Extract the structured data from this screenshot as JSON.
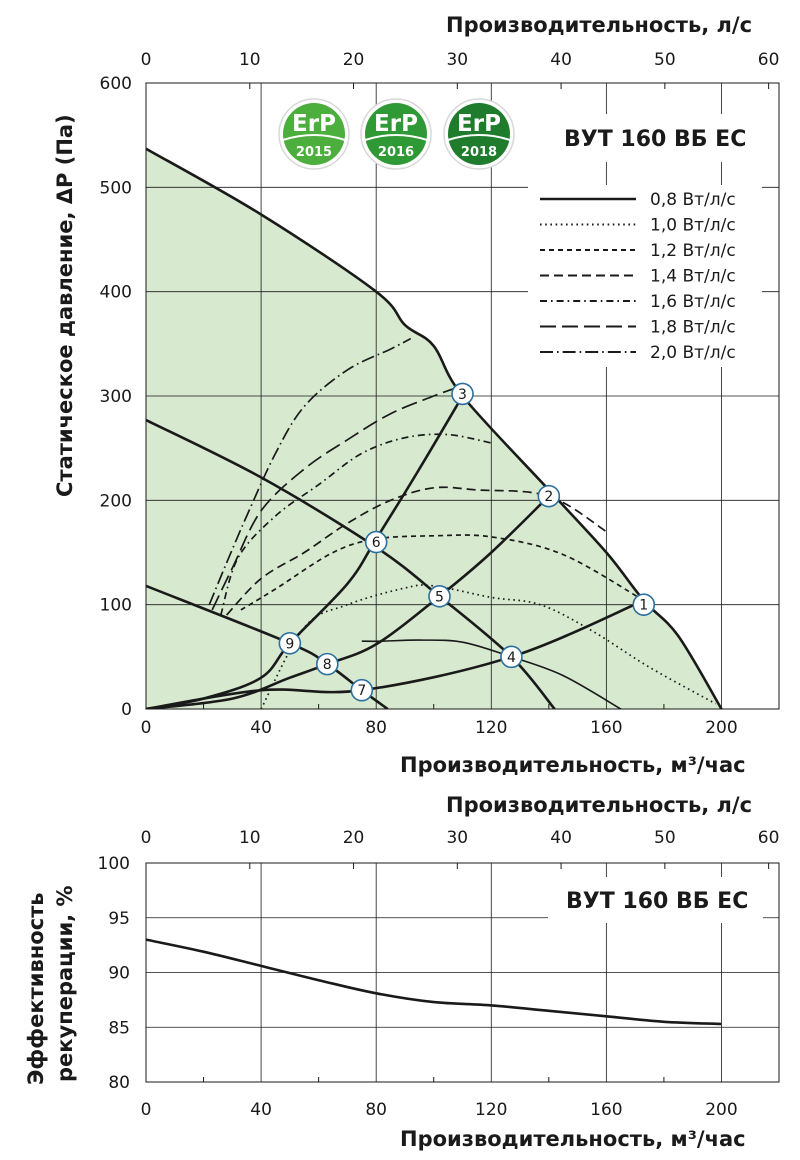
{
  "colors": {
    "area_fill": "#d7e9cf",
    "curve": "#1a1a1a",
    "marker_fill": "#ffffff",
    "marker_stroke": "#2d6f9f",
    "grid": "#1a1a1a",
    "badge_2015": "#4cae3c",
    "badge_2016": "#2f9a35",
    "badge_2018": "#1f7c2c"
  },
  "chart_data": [
    {
      "type": "line",
      "model_label": "ВУТ 160 ВБ ЕС",
      "xlabel": "Производительность, м³/час",
      "x2label": "Производительность, л/с",
      "ylabel": "Статическое давление, ΔP (Па)",
      "xlim": [
        0,
        220
      ],
      "x_ticks": [
        "0",
        "40",
        "80",
        "120",
        "160",
        "200"
      ],
      "x2lim": [
        0,
        61
      ],
      "x2_ticks": [
        "0",
        "10",
        "20",
        "30",
        "40",
        "50",
        "60"
      ],
      "ylim": [
        0,
        600
      ],
      "y_ticks": [
        "0",
        "100",
        "200",
        "300",
        "400",
        "500",
        "600"
      ],
      "grid": true,
      "badges": [
        {
          "top": "ErP",
          "year": "2015"
        },
        {
          "top": "ErP",
          "year": "2016"
        },
        {
          "top": "ErP",
          "year": "2018"
        }
      ],
      "legend": [
        {
          "label": "0,8 Вт/л/с",
          "dash": "solid"
        },
        {
          "label": "1,0 Вт/л/с",
          "dash": "dotted"
        },
        {
          "label": "1,2 Вт/л/с",
          "dash": "short"
        },
        {
          "label": "1,4 Вт/л/с",
          "dash": "medium"
        },
        {
          "label": "1,6 Вт/л/с",
          "dash": "dash-dot-short"
        },
        {
          "label": "1,8 Вт/л/с",
          "dash": "long"
        },
        {
          "label": "2,0 Вт/л/с",
          "dash": "dash-dot-long"
        }
      ],
      "legend_position": "top-right",
      "max_curve": [
        [
          0,
          537
        ],
        [
          40,
          474
        ],
        [
          80,
          400
        ],
        [
          90,
          368
        ],
        [
          100,
          348
        ],
        [
          110,
          300
        ],
        [
          140,
          210
        ],
        [
          160,
          150
        ],
        [
          173,
          104
        ],
        [
          185,
          70
        ],
        [
          200,
          0
        ]
      ],
      "fan_curves": [
        {
          "points": [
            [
              0,
              277
            ],
            [
              40,
              222
            ],
            [
              80,
              155
            ],
            [
              102,
              108
            ],
            [
              127,
              50
            ],
            [
              142,
              0
            ]
          ]
        },
        {
          "points": [
            [
              0,
              118
            ],
            [
              50,
              63
            ],
            [
              63,
              43
            ],
            [
              75,
              18
            ],
            [
              84,
              0
            ]
          ]
        }
      ],
      "system_curves": [
        {
          "points": [
            [
              0,
              0
            ],
            [
              40,
              18
            ],
            [
              75,
              18
            ],
            [
              127,
              50
            ],
            [
              173,
              104
            ]
          ]
        },
        {
          "points": [
            [
              0,
              0
            ],
            [
              30,
              10
            ],
            [
              50,
              30
            ],
            [
              63,
              43
            ],
            [
              80,
              62
            ],
            [
              102,
              108
            ],
            [
              120,
              150
            ],
            [
              140,
              204
            ]
          ]
        },
        {
          "points": [
            [
              0,
              0
            ],
            [
              20,
              10
            ],
            [
              40,
              30
            ],
            [
              50,
              63
            ],
            [
              70,
              120
            ],
            [
              80,
              163
            ],
            [
              95,
              230
            ],
            [
              110,
              300
            ]
          ]
        },
        {
          "points": [
            [
              75,
              65
            ],
            [
              82,
              65
            ],
            [
              95,
              66
            ],
            [
              110,
              64
            ],
            [
              127,
              50
            ],
            [
              145,
              32
            ],
            [
              165,
              0
            ]
          ]
        }
      ],
      "power_curves": [
        {
          "dash": "dotted",
          "points": [
            [
              40,
              0
            ],
            [
              55,
              78
            ],
            [
              70,
              100
            ],
            [
              90,
              116
            ],
            [
              100,
              118
            ],
            [
              120,
              107
            ],
            [
              137,
              100
            ],
            [
              155,
              75
            ],
            [
              175,
              40
            ],
            [
              198,
              5
            ]
          ]
        },
        {
          "dash": "short",
          "points": [
            [
              33,
              95
            ],
            [
              45,
              115
            ],
            [
              65,
              150
            ],
            [
              80,
              163
            ],
            [
              100,
              166
            ],
            [
              120,
              165
            ],
            [
              145,
              148
            ],
            [
              173,
              104
            ]
          ]
        },
        {
          "dash": "medium",
          "points": [
            [
              28,
              90
            ],
            [
              40,
              125
            ],
            [
              55,
              150
            ],
            [
              70,
              178
            ],
            [
              85,
              200
            ],
            [
              100,
              212
            ],
            [
              115,
              210
            ],
            [
              140,
              204
            ],
            [
              160,
              170
            ]
          ]
        },
        {
          "dash": "dash-dot-short",
          "points": [
            [
              26,
              90
            ],
            [
              32,
              145
            ],
            [
              45,
              185
            ],
            [
              60,
              215
            ],
            [
              75,
              245
            ],
            [
              90,
              260
            ],
            [
              105,
              263
            ],
            [
              120,
              255
            ]
          ]
        },
        {
          "dash": "long",
          "points": [
            [
              23,
              95
            ],
            [
              30,
              135
            ],
            [
              40,
              190
            ],
            [
              55,
              230
            ],
            [
              70,
              258
            ],
            [
              85,
              283
            ],
            [
              100,
              300
            ],
            [
              110,
              310
            ]
          ]
        },
        {
          "dash": "dash-dot-long",
          "points": [
            [
              22,
              100
            ],
            [
              28,
              140
            ],
            [
              35,
              185
            ],
            [
              45,
              245
            ],
            [
              55,
              290
            ],
            [
              70,
              325
            ],
            [
              85,
              345
            ],
            [
              92,
              355
            ]
          ]
        }
      ],
      "markers": [
        {
          "label": "1",
          "x": 173,
          "y": 100
        },
        {
          "label": "2",
          "x": 140,
          "y": 204
        },
        {
          "label": "3",
          "x": 110,
          "y": 302
        },
        {
          "label": "4",
          "x": 127,
          "y": 50
        },
        {
          "label": "5",
          "x": 102,
          "y": 108
        },
        {
          "label": "6",
          "x": 80,
          "y": 160
        },
        {
          "label": "7",
          "x": 75,
          "y": 18
        },
        {
          "label": "8",
          "x": 63,
          "y": 43
        },
        {
          "label": "9",
          "x": 50,
          "y": 63
        }
      ]
    },
    {
      "type": "line",
      "model_label": "ВУТ 160 ВБ ЕС",
      "xlabel": "Производительность, м³/час",
      "x2label": "Производительность, л/с",
      "ylabel": "Эффективность рекуперации, %",
      "ylabel_lines": [
        "Эффективность",
        "рекуперации, %"
      ],
      "xlim": [
        0,
        220
      ],
      "x_ticks": [
        "0",
        "40",
        "80",
        "120",
        "160",
        "200"
      ],
      "x2lim": [
        0,
        61
      ],
      "x2_ticks": [
        "0",
        "10",
        "20",
        "30",
        "40",
        "50",
        "60"
      ],
      "ylim": [
        80,
        100
      ],
      "y_ticks": [
        "80",
        "85",
        "90",
        "95",
        "100"
      ],
      "grid": true,
      "series": [
        {
          "x": [
            0,
            20,
            40,
            60,
            80,
            100,
            120,
            140,
            160,
            180,
            200
          ],
          "y": [
            93,
            91.9,
            90.6,
            89.3,
            88.1,
            87.3,
            87,
            86.5,
            86,
            85.5,
            85.3
          ]
        }
      ]
    }
  ]
}
